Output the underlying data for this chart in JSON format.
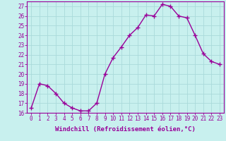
{
  "x": [
    0,
    1,
    2,
    3,
    4,
    5,
    6,
    7,
    8,
    9,
    10,
    11,
    12,
    13,
    14,
    15,
    16,
    17,
    18,
    19,
    20,
    21,
    22,
    23
  ],
  "y": [
    16.5,
    19.0,
    18.8,
    18.0,
    17.0,
    16.5,
    16.2,
    16.2,
    17.0,
    20.0,
    21.7,
    22.8,
    24.0,
    24.8,
    26.1,
    26.0,
    27.2,
    27.0,
    26.0,
    25.8,
    24.0,
    22.1,
    21.3,
    21.0
  ],
  "line_color": "#990099",
  "marker": "+",
  "marker_size": 4,
  "marker_linewidth": 1.0,
  "linewidth": 1.0,
  "bg_color": "#c8f0ee",
  "grid_color": "#aadada",
  "xlabel": "Windchill (Refroidissement éolien,°C)",
  "ylabel": "",
  "ylim": [
    16,
    27.5
  ],
  "yticks": [
    16,
    17,
    18,
    19,
    20,
    21,
    22,
    23,
    24,
    25,
    26,
    27
  ],
  "xlim": [
    -0.5,
    23.5
  ],
  "xticks": [
    0,
    1,
    2,
    3,
    4,
    5,
    6,
    7,
    8,
    9,
    10,
    11,
    12,
    13,
    14,
    15,
    16,
    17,
    18,
    19,
    20,
    21,
    22,
    23
  ],
  "xtick_labels": [
    "0",
    "1",
    "2",
    "3",
    "4",
    "5",
    "6",
    "7",
    "8",
    "9",
    "10",
    "11",
    "12",
    "13",
    "14",
    "15",
    "16",
    "17",
    "18",
    "19",
    "20",
    "21",
    "22",
    "23"
  ],
  "tick_fontsize": 5.5,
  "label_fontsize": 6.5
}
